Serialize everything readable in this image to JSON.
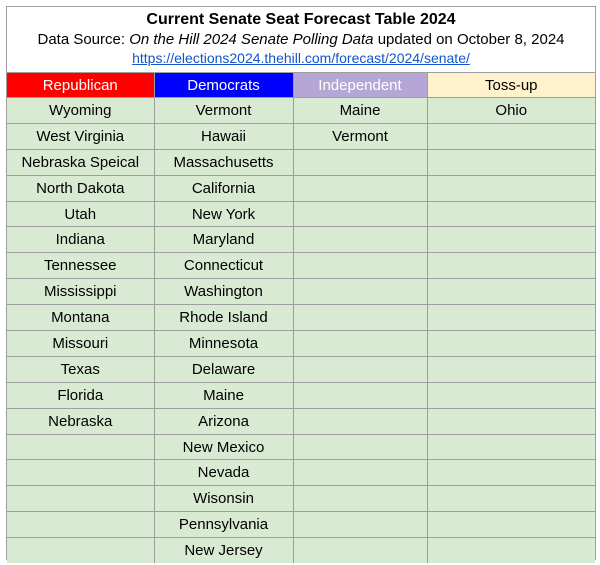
{
  "header": {
    "title": "Current Senate Seat Forecast Table 2024",
    "source_prefix": "Data Source: ",
    "source_name": "On the Hill 2024 Senate Polling Data",
    "source_suffix": " updated on October 8, 2024",
    "link": "https://elections2024.thehill.com/forecast/2024/senate/"
  },
  "columns": [
    {
      "label": "Republican",
      "bg": "#ff0000",
      "fg": "#ffffff"
    },
    {
      "label": "Democrats",
      "bg": "#0000ff",
      "fg": "#ffffff"
    },
    {
      "label": "Independent",
      "bg": "#b4a7d6",
      "fg": "#ffffff"
    },
    {
      "label": "Toss-up",
      "bg": "#fff2cc",
      "fg": "#000000"
    }
  ],
  "republican": [
    "Wyoming",
    "West Virginia",
    "Nebraska Speical",
    "North Dakota",
    "Utah",
    "Indiana",
    "Tennessee",
    "Mississippi",
    "Montana",
    "Missouri",
    "Texas",
    "Florida",
    "Nebraska"
  ],
  "democrats": [
    "Vermont",
    "Hawaii",
    "Massachusetts",
    "California",
    "New York",
    "Maryland",
    "Connecticut",
    "Washington",
    "Rhode Island",
    "Minnesota",
    "Delaware",
    "Maine",
    "Arizona",
    "New Mexico",
    "Nevada",
    "Wisonsin",
    "Pennsylvania",
    "New Jersey"
  ],
  "independent": [
    "Maine",
    "Vermont"
  ],
  "tossup": [
    "Ohio"
  ]
}
